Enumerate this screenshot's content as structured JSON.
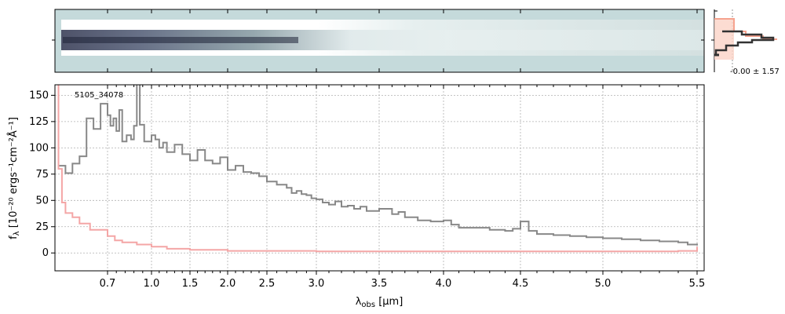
{
  "chart_data": {
    "type": "line",
    "annotation": "5105_34078",
    "xlabel_main": "λ",
    "xlabel_sub": "obs",
    "xlabel_unit": " [μm]",
    "ylabel_main": "f",
    "ylabel_sub": "λ",
    "ylabel_unit": " [10⁻²⁰ ergs⁻¹cm⁻²Å⁻¹]",
    "xlim": [
      0.55,
      5.52
    ],
    "ylim": [
      -17,
      160
    ],
    "x_scale": "spectral (compressed at short wavelengths)",
    "x_ticks": [
      {
        "value": 0.7,
        "label": "0.7"
      },
      {
        "value": 1.0,
        "label": "1.0"
      },
      {
        "value": 1.5,
        "label": "1.5"
      },
      {
        "value": 2.0,
        "label": "2.0"
      },
      {
        "value": 2.5,
        "label": "2.5"
      },
      {
        "value": 3.0,
        "label": "3.0"
      },
      {
        "value": 3.5,
        "label": "3.5"
      },
      {
        "value": 4.0,
        "label": "4.0"
      },
      {
        "value": 4.5,
        "label": "4.5"
      },
      {
        "value": 5.0,
        "label": "5.0"
      },
      {
        "value": 5.5,
        "label": "5.5"
      }
    ],
    "y_ticks": [
      {
        "value": 0,
        "label": "0"
      },
      {
        "value": 25,
        "label": "25"
      },
      {
        "value": 50,
        "label": "50"
      },
      {
        "value": 75,
        "label": "75"
      },
      {
        "value": 100,
        "label": "100"
      },
      {
        "value": 125,
        "label": "125"
      },
      {
        "value": 150,
        "label": "150"
      }
    ],
    "grid": true,
    "series": [
      {
        "color": "#888888",
        "style": "step",
        "points": [
          [
            0.56,
            83
          ],
          [
            0.58,
            76
          ],
          [
            0.6,
            85
          ],
          [
            0.62,
            92
          ],
          [
            0.64,
            128
          ],
          [
            0.66,
            118
          ],
          [
            0.68,
            142
          ],
          [
            0.7,
            131
          ],
          [
            0.72,
            121
          ],
          [
            0.74,
            128
          ],
          [
            0.76,
            116
          ],
          [
            0.78,
            136
          ],
          [
            0.8,
            106
          ],
          [
            0.83,
            112
          ],
          [
            0.86,
            108
          ],
          [
            0.88,
            121
          ],
          [
            0.9,
            165
          ],
          [
            0.92,
            122
          ],
          [
            0.95,
            106
          ],
          [
            1.0,
            112
          ],
          [
            1.05,
            108
          ],
          [
            1.1,
            100
          ],
          [
            1.15,
            105
          ],
          [
            1.2,
            96
          ],
          [
            1.3,
            103
          ],
          [
            1.4,
            94
          ],
          [
            1.5,
            88
          ],
          [
            1.6,
            98
          ],
          [
            1.7,
            88
          ],
          [
            1.8,
            85
          ],
          [
            1.9,
            91
          ],
          [
            2.0,
            79
          ],
          [
            2.1,
            83
          ],
          [
            2.2,
            77
          ],
          [
            2.3,
            76
          ],
          [
            2.4,
            73
          ],
          [
            2.5,
            68
          ],
          [
            2.6,
            65
          ],
          [
            2.7,
            62
          ],
          [
            2.75,
            57
          ],
          [
            2.8,
            59
          ],
          [
            2.85,
            56
          ],
          [
            2.9,
            55
          ],
          [
            2.95,
            52
          ],
          [
            3.0,
            51
          ],
          [
            3.05,
            48
          ],
          [
            3.1,
            46
          ],
          [
            3.15,
            49
          ],
          [
            3.2,
            44
          ],
          [
            3.25,
            45
          ],
          [
            3.3,
            42
          ],
          [
            3.35,
            44
          ],
          [
            3.4,
            40
          ],
          [
            3.5,
            42
          ],
          [
            3.6,
            37
          ],
          [
            3.65,
            39
          ],
          [
            3.7,
            34
          ],
          [
            3.8,
            31
          ],
          [
            3.9,
            30
          ],
          [
            4.0,
            31
          ],
          [
            4.05,
            27
          ],
          [
            4.1,
            24
          ],
          [
            4.2,
            24
          ],
          [
            4.3,
            22
          ],
          [
            4.4,
            21
          ],
          [
            4.45,
            23
          ],
          [
            4.5,
            30
          ],
          [
            4.55,
            21
          ],
          [
            4.6,
            18
          ],
          [
            4.7,
            17
          ],
          [
            4.8,
            16
          ],
          [
            4.9,
            15
          ],
          [
            5.0,
            14
          ],
          [
            5.1,
            13
          ],
          [
            5.2,
            12
          ],
          [
            5.3,
            11
          ],
          [
            5.4,
            10
          ],
          [
            5.45,
            8
          ],
          [
            5.5,
            9
          ]
        ]
      },
      {
        "color": "#f4a6a6",
        "style": "step",
        "points": [
          [
            0.555,
            190
          ],
          [
            0.56,
            80
          ],
          [
            0.57,
            48
          ],
          [
            0.58,
            38
          ],
          [
            0.6,
            34
          ],
          [
            0.62,
            28
          ],
          [
            0.65,
            22
          ],
          [
            0.7,
            16
          ],
          [
            0.75,
            12
          ],
          [
            0.8,
            10
          ],
          [
            0.9,
            8
          ],
          [
            1.0,
            6
          ],
          [
            1.2,
            4
          ],
          [
            1.5,
            3
          ],
          [
            2.0,
            2
          ],
          [
            3.0,
            1.5
          ],
          [
            4.0,
            1.5
          ],
          [
            5.0,
            1.5
          ],
          [
            5.4,
            2
          ],
          [
            5.5,
            6
          ]
        ]
      }
    ]
  }
}
